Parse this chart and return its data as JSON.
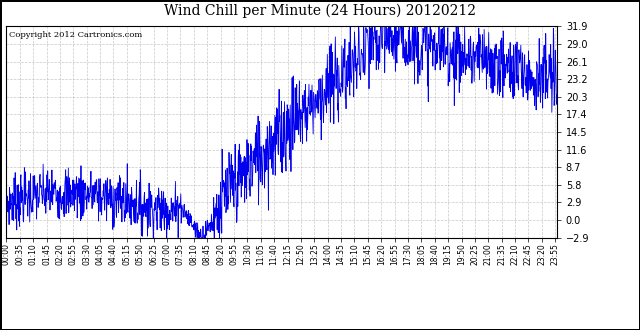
{
  "title": "Wind Chill per Minute (24 Hours) 20120212",
  "copyright_text": "Copyright 2012 Cartronics.com",
  "line_color": "#0000EE",
  "background_color": "#FFFFFF",
  "plot_background": "#FFFFFF",
  "grid_color": "#BBBBBB",
  "yticks": [
    -2.9,
    0.0,
    2.9,
    5.8,
    8.7,
    11.6,
    14.5,
    17.4,
    20.3,
    23.2,
    26.1,
    29.0,
    31.9
  ],
  "ymin": -2.9,
  "ymax": 31.9,
  "xtick_labels": [
    "00:00",
    "00:35",
    "01:10",
    "01:45",
    "02:20",
    "02:55",
    "03:30",
    "04:05",
    "04:40",
    "05:15",
    "05:50",
    "06:25",
    "07:00",
    "07:35",
    "08:10",
    "08:45",
    "09:20",
    "09:55",
    "10:30",
    "11:05",
    "11:40",
    "12:15",
    "12:50",
    "13:25",
    "14:00",
    "14:35",
    "15:10",
    "15:45",
    "16:20",
    "16:55",
    "17:30",
    "18:05",
    "18:40",
    "19:15",
    "19:50",
    "20:25",
    "21:00",
    "21:35",
    "22:10",
    "22:45",
    "23:20",
    "23:55"
  ],
  "seed": 7
}
